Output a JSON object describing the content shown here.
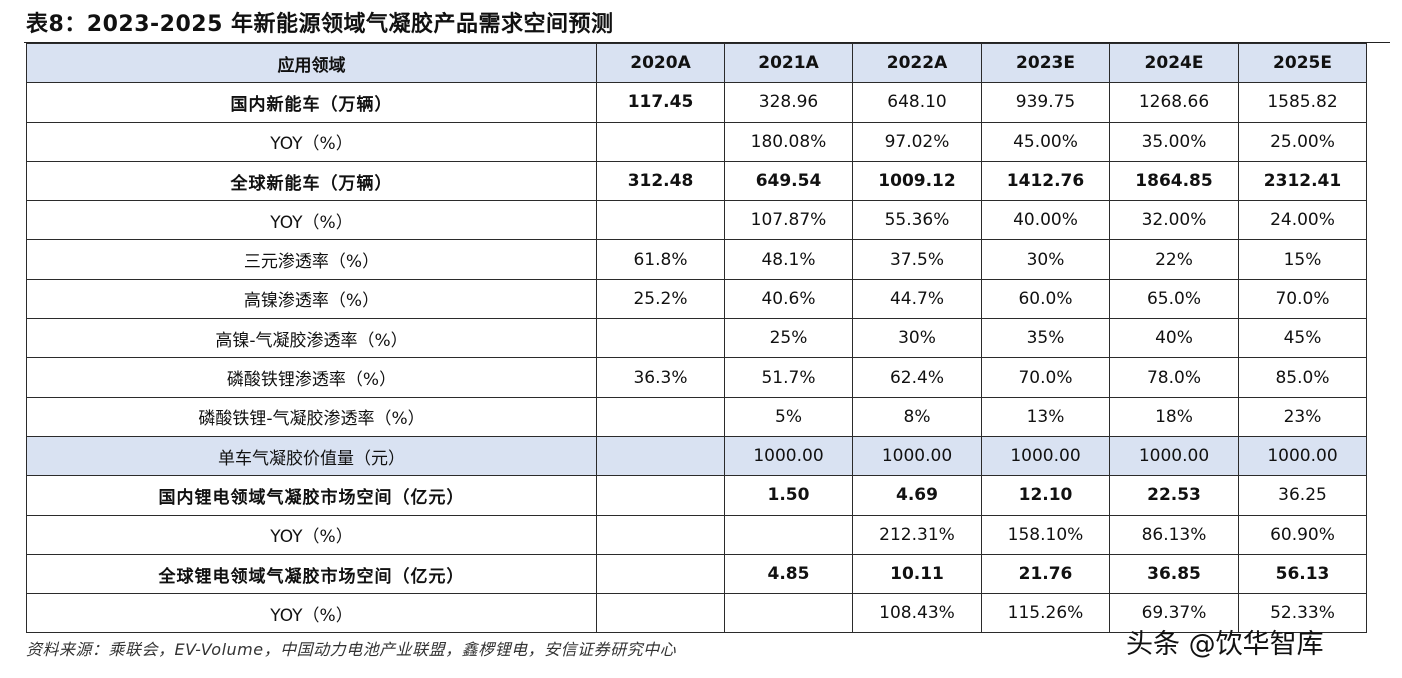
{
  "title": "表8：2023-2025 年新能源领域气凝胶产品需求空间预测",
  "table": {
    "headers": [
      "应用领域",
      "2020A",
      "2021A",
      "2022A",
      "2023E",
      "2024E",
      "2025E"
    ],
    "rows": [
      {
        "label": "国内新能车（万辆）",
        "values": [
          "117.45",
          "328.96",
          "648.10",
          "939.75",
          "1268.66",
          "1585.82"
        ]
      },
      {
        "label": "YOY（%）",
        "values": [
          "",
          "180.08%",
          "97.02%",
          "45.00%",
          "35.00%",
          "25.00%"
        ]
      },
      {
        "label": "全球新能车（万辆）",
        "values": [
          "312.48",
          "649.54",
          "1009.12",
          "1412.76",
          "1864.85",
          "2312.41"
        ]
      },
      {
        "label": "YOY（%）",
        "values": [
          "",
          "107.87%",
          "55.36%",
          "40.00%",
          "32.00%",
          "24.00%"
        ]
      },
      {
        "label": "三元渗透率（%）",
        "values": [
          "61.8%",
          "48.1%",
          "37.5%",
          "30%",
          "22%",
          "15%"
        ]
      },
      {
        "label": "高镍渗透率（%）",
        "values": [
          "25.2%",
          "40.6%",
          "44.7%",
          "60.0%",
          "65.0%",
          "70.0%"
        ]
      },
      {
        "label": "高镍-气凝胶渗透率（%）",
        "values": [
          "",
          "25%",
          "30%",
          "35%",
          "40%",
          "45%"
        ]
      },
      {
        "label": "磷酸铁锂渗透率（%）",
        "values": [
          "36.3%",
          "51.7%",
          "62.4%",
          "70.0%",
          "78.0%",
          "85.0%"
        ]
      },
      {
        "label": "磷酸铁锂-气凝胶渗透率（%）",
        "values": [
          "",
          "5%",
          "8%",
          "13%",
          "18%",
          "23%"
        ]
      },
      {
        "label": "单车气凝胶价值量（元）",
        "values": [
          "",
          "1000.00",
          "1000.00",
          "1000.00",
          "1000.00",
          "1000.00"
        ]
      },
      {
        "label": "国内锂电领域气凝胶市场空间（亿元）",
        "values": [
          "",
          "1.50",
          "4.69",
          "12.10",
          "22.53",
          "36.25"
        ]
      },
      {
        "label": "YOY（%）",
        "values": [
          "",
          "",
          "212.31%",
          "158.10%",
          "86.13%",
          "60.90%"
        ]
      },
      {
        "label": "全球锂电领域气凝胶市场空间（亿元）",
        "values": [
          "",
          "4.85",
          "10.11",
          "21.76",
          "36.85",
          "56.13"
        ]
      },
      {
        "label": "YOY（%）",
        "values": [
          "",
          "",
          "108.43%",
          "115.26%",
          "69.37%",
          "52.33%"
        ]
      }
    ]
  },
  "source": "资料来源：乘联会，EV-Volume，中国动力电池产业联盟，鑫椤锂电，安信证券研究中心",
  "watermark": "头条 @饮华智库",
  "colors": {
    "header_bg": "#d9e2f2",
    "border": "#2b2b2b"
  }
}
